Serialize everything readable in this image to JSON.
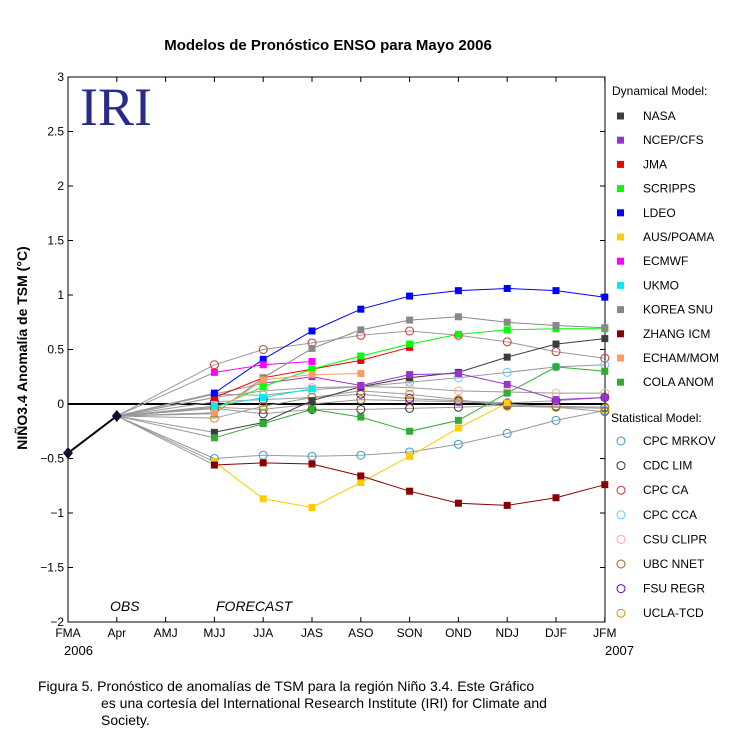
{
  "chart_data": {
    "type": "line",
    "title": "Modelos de Pronóstico ENSO para Mayo 2006",
    "ylabel": "NIÑO3.4 Anomalía de TSM (°C)",
    "xlabel": "",
    "logo": "IRI",
    "categories": [
      "FMA",
      "Apr",
      "AMJ",
      "MJJ",
      "JJA",
      "JAS",
      "ASO",
      "SON",
      "OND",
      "NDJ",
      "DJF",
      "JFM"
    ],
    "year_start": "2006",
    "year_end": "2007",
    "ylim": [
      -2,
      3
    ],
    "yticks": [
      -2,
      -1.5,
      -1,
      -0.5,
      0,
      0.5,
      1,
      1.5,
      2,
      2.5,
      3
    ],
    "ytick_labels": [
      "−2",
      "−1.5",
      "−1",
      "−0.5",
      "0",
      "0.5",
      "1",
      "1.5",
      "2",
      "2.5",
      "3"
    ],
    "obs_label": "OBS",
    "forecast_label": "FORECAST",
    "observed": [
      -0.45,
      -0.11
    ],
    "legend_dynamical_title": "Dynamical Model:",
    "legend_statistical_title": "Statistical Model:",
    "dynamical_series": [
      {
        "name": "NASA",
        "color": "#3c3c3c",
        "values": [
          null,
          -0.11,
          null,
          -0.26,
          -0.17,
          0.03,
          0.16,
          0.24,
          0.29,
          0.43,
          0.55,
          0.6
        ]
      },
      {
        "name": "NCEP/CFS",
        "color": "#9933cc",
        "values": [
          null,
          -0.11,
          null,
          null,
          0.19,
          0.25,
          0.17,
          0.27,
          0.28,
          0.18,
          0.04,
          0.06
        ]
      },
      {
        "name": "JMA",
        "color": "#ee0000",
        "values": [
          null,
          -0.11,
          null,
          0.06,
          0.24,
          0.32,
          0.4,
          0.52,
          null,
          null,
          null,
          null
        ]
      },
      {
        "name": "SCRIPPS",
        "color": "#00ff00",
        "values": [
          null,
          -0.11,
          null,
          -0.04,
          0.16,
          0.32,
          0.44,
          0.55,
          0.64,
          0.68,
          0.69,
          0.69
        ]
      },
      {
        "name": "LDEO",
        "color": "#0000ff",
        "values": [
          null,
          -0.11,
          null,
          0.1,
          0.41,
          0.67,
          0.87,
          0.99,
          1.04,
          1.06,
          1.04,
          0.98
        ]
      },
      {
        "name": "AUS/POAMA",
        "color": "#ffcc00",
        "values": [
          null,
          -0.11,
          null,
          -0.53,
          -0.87,
          -0.95,
          -0.72,
          -0.48,
          -0.22,
          0.01,
          null,
          null
        ]
      },
      {
        "name": "ECMWF",
        "color": "#ff00ff",
        "values": [
          null,
          -0.11,
          null,
          0.29,
          0.36,
          0.39,
          null,
          null,
          null,
          null,
          null,
          null
        ]
      },
      {
        "name": "UKMO",
        "color": "#00eeee",
        "values": [
          null,
          -0.11,
          null,
          -0.02,
          0.06,
          0.14,
          null,
          null,
          null,
          null,
          null,
          null
        ]
      },
      {
        "name": "KOREA SNU",
        "color": "#888888",
        "values": [
          null,
          -0.11,
          null,
          -0.09,
          0.24,
          0.51,
          0.68,
          0.77,
          0.8,
          0.75,
          0.72,
          0.7
        ]
      },
      {
        "name": "ZHANG ICM",
        "color": "#880000",
        "values": [
          null,
          -0.11,
          null,
          -0.56,
          -0.54,
          -0.55,
          -0.66,
          -0.8,
          -0.91,
          -0.93,
          -0.86,
          -0.74
        ]
      },
      {
        "name": "ECHAM/MOM",
        "color": "#ff9966",
        "values": [
          null,
          -0.11,
          null,
          -0.08,
          0.22,
          0.27,
          0.28,
          null,
          null,
          null,
          null,
          null
        ]
      },
      {
        "name": "COLA ANOM",
        "color": "#33aa33",
        "values": [
          null,
          -0.11,
          null,
          -0.31,
          -0.18,
          -0.05,
          -0.12,
          -0.25,
          -0.15,
          0.1,
          0.34,
          0.3
        ]
      }
    ],
    "statistical_series": [
      {
        "name": "CPC MRKOV",
        "color": "#3399cc",
        "values": [
          null,
          -0.11,
          null,
          -0.5,
          -0.47,
          -0.48,
          -0.47,
          -0.44,
          -0.37,
          -0.27,
          -0.15,
          -0.06
        ]
      },
      {
        "name": "CDC LIM",
        "color": "#333333",
        "values": [
          null,
          -0.11,
          null,
          -0.04,
          -0.09,
          -0.05,
          -0.05,
          -0.04,
          -0.03,
          -0.01,
          -0.02,
          -0.03
        ]
      },
      {
        "name": "CPC CA",
        "color": "#cc3333",
        "values": [
          null,
          -0.11,
          null,
          0.36,
          0.5,
          0.56,
          0.63,
          0.67,
          0.63,
          0.57,
          0.48,
          0.42
        ]
      },
      {
        "name": "CPC CCA",
        "color": "#66ccff",
        "values": [
          null,
          -0.11,
          null,
          0.09,
          0.08,
          0.13,
          0.16,
          0.2,
          0.24,
          0.29,
          0.34,
          0.36
        ]
      },
      {
        "name": "CSU CLIPR",
        "color": "#ffaa99",
        "values": [
          null,
          -0.11,
          null,
          0.06,
          0.12,
          0.15,
          0.16,
          0.15,
          0.12,
          0.11,
          0.1,
          0.1
        ]
      },
      {
        "name": "UBC NNET",
        "color": "#996633",
        "values": [
          null,
          -0.11,
          null,
          -0.03,
          -0.05,
          0.0,
          0.04,
          0.03,
          0.02,
          0.0,
          -0.03,
          -0.07
        ]
      },
      {
        "name": "FSU REGR",
        "color": "#6600aa",
        "values": [
          null,
          -0.11,
          null,
          0.02,
          0.04,
          0.06,
          0.09,
          0.05,
          0.03,
          0.01,
          0.03,
          0.06
        ]
      },
      {
        "name": "UCLA-TCD",
        "color": "#cc9900",
        "values": [
          null,
          -0.11,
          null,
          -0.13,
          -0.02,
          0.06,
          0.12,
          0.09,
          0.04,
          -0.02,
          -0.03,
          -0.04
        ]
      }
    ]
  },
  "caption": {
    "line1": "Figura 5.  Pronóstico de anomalías de TSM para la región Niño 3.4.  Este Gráfico",
    "line2": "es una cortesía del International Research Institute (IRI) for Climate and Society."
  }
}
